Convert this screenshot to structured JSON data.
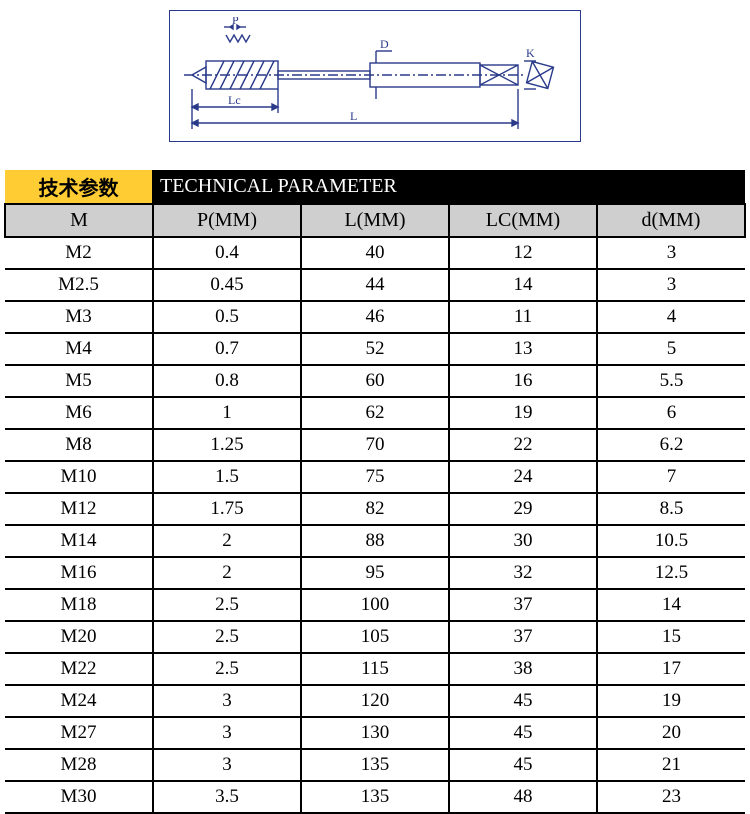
{
  "diagram": {
    "labels": {
      "p": "P",
      "d": "D",
      "k": "K",
      "lc": "Lc",
      "l": "L"
    },
    "stroke_color": "#2a3a8a",
    "stroke_width": 1.4
  },
  "table": {
    "title_left": "技术参数",
    "title_right": "TECHNICAL PARAMETER",
    "columns": [
      "M",
      "P(MM)",
      "L(MM)",
      "LC(MM)",
      "d(MM)"
    ],
    "rows": [
      [
        "M2",
        "0.4",
        "40",
        "12",
        "3"
      ],
      [
        "M2.5",
        "0.45",
        "44",
        "14",
        "3"
      ],
      [
        "M3",
        "0.5",
        "46",
        "11",
        "4"
      ],
      [
        "M4",
        "0.7",
        "52",
        "13",
        "5"
      ],
      [
        "M5",
        "0.8",
        "60",
        "16",
        "5.5"
      ],
      [
        "M6",
        "1",
        "62",
        "19",
        "6"
      ],
      [
        "M8",
        "1.25",
        "70",
        "22",
        "6.2"
      ],
      [
        "M10",
        "1.5",
        "75",
        "24",
        "7"
      ],
      [
        "M12",
        "1.75",
        "82",
        "29",
        "8.5"
      ],
      [
        "M14",
        "2",
        "88",
        "30",
        "10.5"
      ],
      [
        "M16",
        "2",
        "95",
        "32",
        "12.5"
      ],
      [
        "M18",
        "2.5",
        "100",
        "37",
        "14"
      ],
      [
        "M20",
        "2.5",
        "105",
        "37",
        "15"
      ],
      [
        "M22",
        "2.5",
        "115",
        "38",
        "17"
      ],
      [
        "M24",
        "3",
        "120",
        "45",
        "19"
      ],
      [
        "M27",
        "3",
        "130",
        "45",
        "20"
      ],
      [
        "M28",
        "3",
        "135",
        "45",
        "21"
      ],
      [
        "M30",
        "3.5",
        "135",
        "48",
        "23"
      ]
    ],
    "header_bg_left": "#ffcc33",
    "header_bg_right": "#000000",
    "header_text_right": "#ffffff",
    "col_head_bg": "#cfcfcf",
    "border_color": "#000000",
    "font_family": "Times New Roman",
    "font_size_header": 20,
    "font_size_cell": 19
  }
}
